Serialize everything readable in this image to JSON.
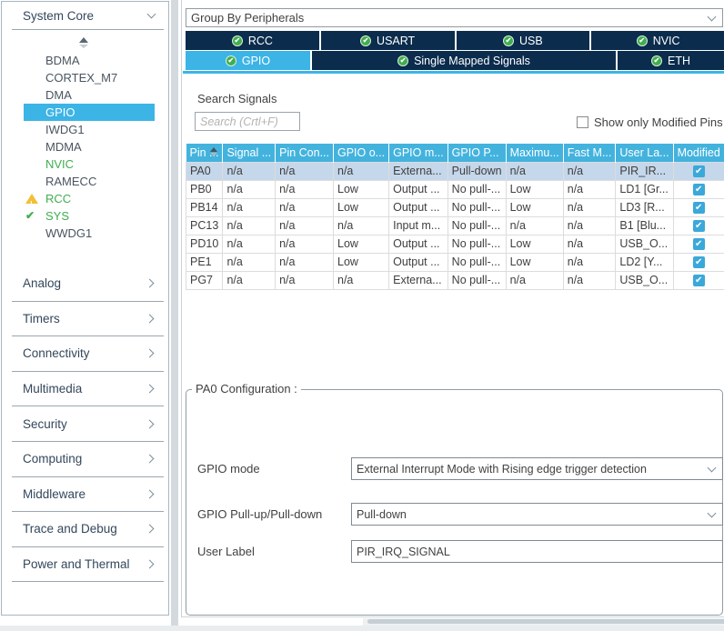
{
  "sidebar": {
    "system_core": {
      "label": "System Core",
      "items": [
        {
          "label": "BDMA",
          "state": "normal"
        },
        {
          "label": "CORTEX_M7",
          "state": "normal"
        },
        {
          "label": "DMA",
          "state": "normal"
        },
        {
          "label": "GPIO",
          "state": "selected"
        },
        {
          "label": "IWDG1",
          "state": "normal"
        },
        {
          "label": "MDMA",
          "state": "normal"
        },
        {
          "label": "NVIC",
          "state": "configured"
        },
        {
          "label": "RAMECC",
          "state": "normal"
        },
        {
          "label": "RCC",
          "state": "warning"
        },
        {
          "label": "SYS",
          "state": "ok"
        },
        {
          "label": "WWDG1",
          "state": "normal"
        }
      ]
    },
    "categories": [
      "Analog",
      "Timers",
      "Connectivity",
      "Multimedia",
      "Security",
      "Computing",
      "Middleware",
      "Trace and Debug",
      "Power and Thermal"
    ]
  },
  "toolbar": {
    "group_by_value": "Group By Peripherals"
  },
  "tabs": {
    "row1": [
      {
        "label": "RCC",
        "configured": true,
        "selected": false
      },
      {
        "label": "USART",
        "configured": true,
        "selected": false
      },
      {
        "label": "USB",
        "configured": true,
        "selected": false
      },
      {
        "label": "NVIC",
        "configured": true,
        "selected": false
      }
    ],
    "row2": [
      {
        "label": "GPIO",
        "configured": true,
        "selected": true
      },
      {
        "label": "Single Mapped Signals",
        "configured": true,
        "selected": false
      },
      {
        "label": "ETH",
        "configured": true,
        "selected": false
      }
    ]
  },
  "signals": {
    "search_label": "Search Signals",
    "search_placeholder": "Search (Crtl+F)",
    "show_only_modified_label": "Show only Modified Pins",
    "show_only_modified_checked": false
  },
  "table": {
    "headers": [
      "Pin ...",
      "Signal ...",
      "Pin Con...",
      "GPIO o...",
      "GPIO m...",
      "GPIO P...",
      "Maximu...",
      "Fast M...",
      "User La...",
      "Modified"
    ],
    "rows": [
      {
        "cells": [
          "PA0",
          "n/a",
          "n/a",
          "n/a",
          "Externa...",
          "Pull-down",
          "n/a",
          "n/a",
          "PIR_IR..."
        ],
        "modified": true,
        "selected": true
      },
      {
        "cells": [
          "PB0",
          "n/a",
          "n/a",
          "Low",
          "Output ...",
          "No pull-...",
          "Low",
          "n/a",
          "LD1 [Gr..."
        ],
        "modified": true,
        "selected": false
      },
      {
        "cells": [
          "PB14",
          "n/a",
          "n/a",
          "Low",
          "Output ...",
          "No pull-...",
          "Low",
          "n/a",
          "LD3 [R..."
        ],
        "modified": true,
        "selected": false
      },
      {
        "cells": [
          "PC13",
          "n/a",
          "n/a",
          "n/a",
          "Input m...",
          "No pull-...",
          "n/a",
          "n/a",
          "B1 [Blu..."
        ],
        "modified": true,
        "selected": false
      },
      {
        "cells": [
          "PD10",
          "n/a",
          "n/a",
          "Low",
          "Output ...",
          "No pull-...",
          "Low",
          "n/a",
          "USB_O..."
        ],
        "modified": true,
        "selected": false
      },
      {
        "cells": [
          "PE1",
          "n/a",
          "n/a",
          "Low",
          "Output ...",
          "No pull-...",
          "Low",
          "n/a",
          "LD2 [Y..."
        ],
        "modified": true,
        "selected": false
      },
      {
        "cells": [
          "PG7",
          "n/a",
          "n/a",
          "n/a",
          "Externa...",
          "No pull-...",
          "n/a",
          "n/a",
          "USB_O..."
        ],
        "modified": true,
        "selected": false
      }
    ]
  },
  "config": {
    "title": "PA0 Configuration :",
    "fields": [
      {
        "label": "GPIO mode",
        "value": "External Interrupt Mode with Rising edge trigger detection",
        "type": "select"
      },
      {
        "label": "GPIO Pull-up/Pull-down",
        "value": "Pull-down",
        "type": "select"
      },
      {
        "label": "User Label",
        "value": "PIR_IRQ_SIGNAL",
        "type": "text"
      }
    ]
  },
  "colors": {
    "accent_blue": "#3cb4e6",
    "dark_navy": "#0b2c4d",
    "table_header_blue": "#43b3de",
    "selected_row_blue": "#c5d7ea",
    "configured_green": "#3fae4e",
    "warning_yellow": "#f2c037"
  }
}
